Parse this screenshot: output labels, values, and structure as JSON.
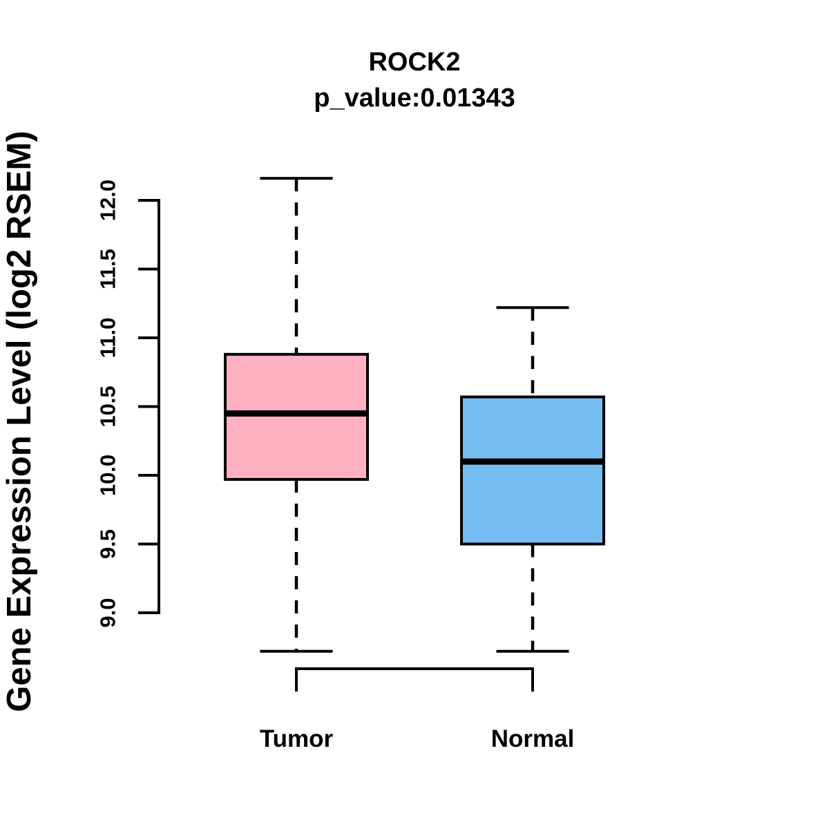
{
  "chart_data": {
    "type": "boxplot",
    "title": "ROCK2",
    "subtitle": "p_value:0.01343",
    "ylabel": "Gene Expression Level (log2 RSEM)",
    "xlabel": "",
    "ylim": [
      8.6,
      12.25
    ],
    "grid": false,
    "legend": null,
    "y_ticks": [
      {
        "value": 9.0,
        "label": "9.0"
      },
      {
        "value": 9.5,
        "label": "9.5"
      },
      {
        "value": 10.0,
        "label": "10.0"
      },
      {
        "value": 10.5,
        "label": "10.5"
      },
      {
        "value": 11.0,
        "label": "11.0"
      },
      {
        "value": 11.5,
        "label": "11.5"
      },
      {
        "value": 12.0,
        "label": "12.0"
      }
    ],
    "groups": [
      {
        "label": "Tumor",
        "fill_color": "#FFB0C1",
        "whisker_low": 8.72,
        "q1": 9.97,
        "median": 10.45,
        "q3": 10.88,
        "whisker_high": 12.16
      },
      {
        "label": "Normal",
        "fill_color": "#76BEF2",
        "whisker_low": 8.72,
        "q1": 9.5,
        "median": 10.1,
        "q3": 10.57,
        "whisker_high": 11.22
      }
    ]
  },
  "colors": {
    "stroke": "#000000",
    "background": "#FFFFFF"
  }
}
